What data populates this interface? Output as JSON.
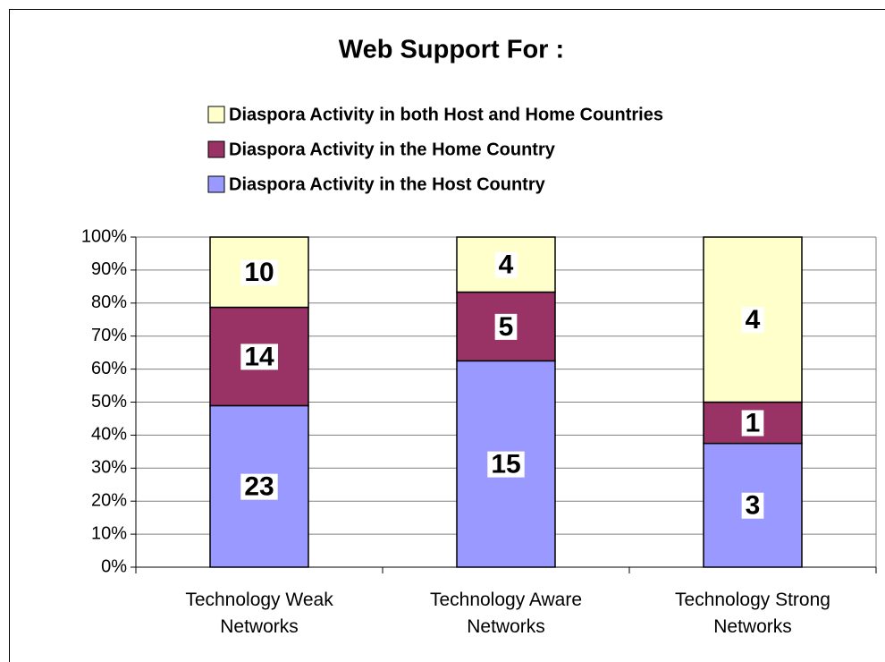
{
  "chart_data": {
    "type": "bar",
    "stacking": "percent",
    "title": "Web Support For :",
    "categories": [
      "Technology Weak Networks",
      "Technology Aware Networks",
      "Technology Strong Networks"
    ],
    "series": [
      {
        "name": "Diaspora Activity in the Host Country",
        "color": "#9999ff",
        "values": [
          23,
          15,
          3
        ]
      },
      {
        "name": "Diaspora Activity in the Home Country",
        "color": "#993366",
        "values": [
          14,
          5,
          1
        ]
      },
      {
        "name": "Diaspora Activity in both Host and Home Countries",
        "color": "#ffffcc",
        "values": [
          10,
          4,
          4
        ]
      }
    ],
    "ylim": [
      0,
      100
    ],
    "yticks": [
      {
        "value": 0,
        "label": "0%"
      },
      {
        "value": 10,
        "label": "10%"
      },
      {
        "value": 20,
        "label": "20%"
      },
      {
        "value": 30,
        "label": "30%"
      },
      {
        "value": 40,
        "label": "40%"
      },
      {
        "value": 50,
        "label": "50%"
      },
      {
        "value": 60,
        "label": "60%"
      },
      {
        "value": 70,
        "label": "70%"
      },
      {
        "value": 80,
        "label": "80%"
      },
      {
        "value": 90,
        "label": "90%"
      },
      {
        "value": 100,
        "label": "100%"
      }
    ],
    "grid": true,
    "legend": "top"
  }
}
